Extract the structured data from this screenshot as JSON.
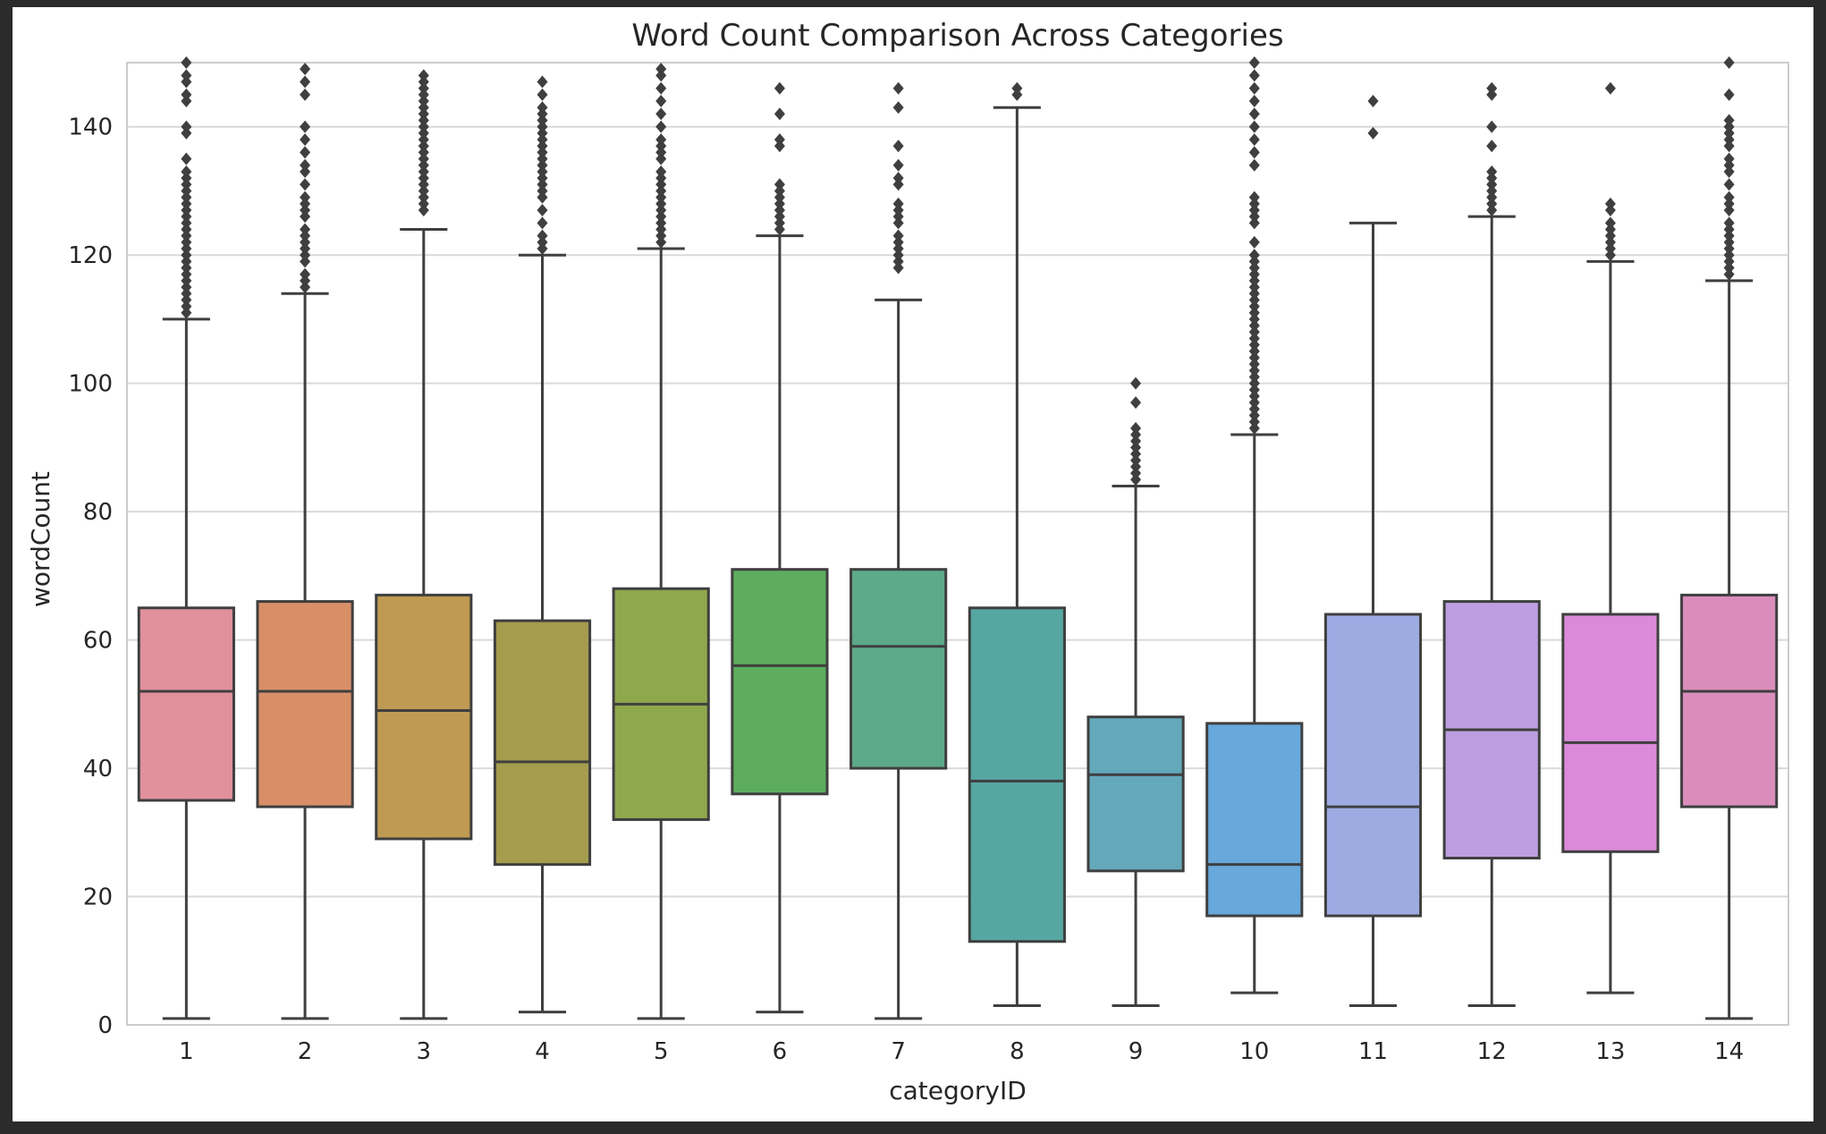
{
  "chart_data": {
    "type": "box",
    "title": "Word Count Comparison Across Categories",
    "xlabel": "categoryID",
    "ylabel": "wordCount",
    "ylim": [
      0,
      150
    ],
    "yticks": [
      0,
      20,
      40,
      60,
      80,
      100,
      120,
      140
    ],
    "grid": true,
    "legend": "none",
    "categories": [
      "1",
      "2",
      "3",
      "4",
      "5",
      "6",
      "7",
      "8",
      "9",
      "10",
      "11",
      "12",
      "13",
      "14"
    ],
    "colors": [
      "#e1919c",
      "#d88f68",
      "#bf9a52",
      "#a59c4e",
      "#8fa84d",
      "#5ead5e",
      "#5caa8a",
      "#56a6a2",
      "#64a9bb",
      "#68a8db",
      "#9eabe3",
      "#be9ee1",
      "#da8ad9",
      "#da8dbb"
    ],
    "boxes": [
      {
        "low": 1,
        "q1": 35,
        "median": 52,
        "q3": 65,
        "high": 110,
        "outliers": [
          111,
          112,
          113,
          114,
          115,
          116,
          117,
          118,
          119,
          120,
          121,
          122,
          123,
          124,
          125,
          126,
          127,
          128,
          129,
          130,
          131,
          132,
          133,
          135,
          139,
          140,
          144,
          145,
          147,
          148,
          150
        ]
      },
      {
        "low": 1,
        "q1": 34,
        "median": 52,
        "q3": 66,
        "high": 114,
        "outliers": [
          115,
          116,
          117,
          119,
          120,
          121,
          122,
          123,
          124,
          126,
          127,
          128,
          129,
          131,
          133,
          134,
          136,
          138,
          140,
          145,
          147,
          149
        ]
      },
      {
        "low": 1,
        "q1": 29,
        "median": 49,
        "q3": 67,
        "high": 124,
        "outliers": [
          127,
          128,
          129,
          130,
          131,
          132,
          133,
          134,
          135,
          136,
          137,
          138,
          139,
          140,
          141,
          142,
          143,
          144,
          145,
          146,
          147,
          148
        ]
      },
      {
        "low": 2,
        "q1": 25,
        "median": 41,
        "q3": 63,
        "high": 120,
        "outliers": [
          121,
          122,
          123,
          125,
          127,
          129,
          130,
          131,
          132,
          133,
          134,
          135,
          136,
          137,
          138,
          139,
          140,
          141,
          142,
          143,
          145,
          147
        ]
      },
      {
        "low": 1,
        "q1": 32,
        "median": 50,
        "q3": 68,
        "high": 121,
        "outliers": [
          122,
          123,
          124,
          125,
          126,
          127,
          128,
          129,
          130,
          131,
          132,
          133,
          135,
          136,
          137,
          138,
          140,
          142,
          144,
          146,
          148,
          149
        ]
      },
      {
        "low": 2,
        "q1": 36,
        "median": 56,
        "q3": 71,
        "high": 123,
        "outliers": [
          124,
          125,
          126,
          127,
          128,
          129,
          130,
          131,
          137,
          138,
          142,
          146
        ]
      },
      {
        "low": 1,
        "q1": 40,
        "median": 59,
        "q3": 71,
        "high": 113,
        "outliers": [
          118,
          119,
          120,
          121,
          122,
          123,
          125,
          126,
          127,
          128,
          131,
          132,
          134,
          137,
          143,
          146
        ]
      },
      {
        "low": 3,
        "q1": 13,
        "median": 38,
        "q3": 65,
        "high": 143,
        "outliers": [
          145,
          146
        ]
      },
      {
        "low": 3,
        "q1": 24,
        "median": 39,
        "q3": 48,
        "high": 84,
        "outliers": [
          85,
          86,
          87,
          88,
          89,
          90,
          91,
          92,
          93,
          97,
          100
        ]
      },
      {
        "low": 5,
        "q1": 17,
        "median": 25,
        "q3": 47,
        "high": 92,
        "outliers": [
          93,
          94,
          95,
          96,
          97,
          98,
          99,
          100,
          101,
          102,
          103,
          104,
          105,
          106,
          107,
          108,
          109,
          110,
          111,
          112,
          113,
          114,
          115,
          116,
          117,
          118,
          119,
          120,
          122,
          125,
          126,
          127,
          128,
          129,
          134,
          136,
          138,
          140,
          142,
          144,
          146,
          148,
          150
        ]
      },
      {
        "low": 3,
        "q1": 17,
        "median": 34,
        "q3": 64,
        "high": 125,
        "outliers": [
          139,
          144
        ]
      },
      {
        "low": 3,
        "q1": 26,
        "median": 46,
        "q3": 66,
        "high": 126,
        "outliers": [
          127,
          128,
          129,
          130,
          131,
          132,
          133,
          137,
          140,
          145,
          146
        ]
      },
      {
        "low": 5,
        "q1": 27,
        "median": 44,
        "q3": 64,
        "high": 119,
        "outliers": [
          120,
          121,
          122,
          123,
          124,
          125,
          127,
          128,
          146
        ]
      },
      {
        "low": 1,
        "q1": 34,
        "median": 52,
        "q3": 67,
        "high": 116,
        "outliers": [
          117,
          118,
          119,
          120,
          121,
          122,
          123,
          124,
          125,
          127,
          128,
          129,
          131,
          133,
          134,
          135,
          137,
          138,
          139,
          140,
          141,
          145,
          150
        ]
      }
    ]
  }
}
